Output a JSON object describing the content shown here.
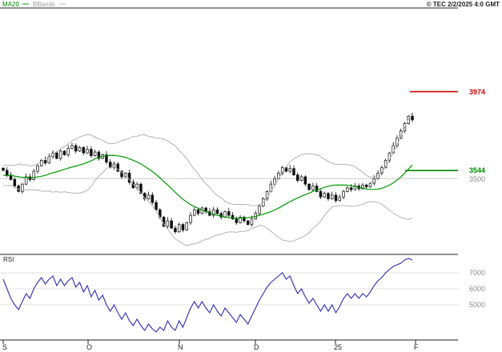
{
  "header": {
    "indicators": [
      {
        "label": "MA20",
        "color": "#008800"
      },
      {
        "label": "BBands",
        "color": "#b3b3b3"
      }
    ],
    "copyright": "© TEC 2/2/2025 4:0 GMT"
  },
  "price_panel": {
    "levels": [
      {
        "label": "3974",
        "value": 3974,
        "type": "resistance",
        "color": "#cc0000"
      },
      {
        "label": "3544",
        "value": 3544,
        "type": "support",
        "color": "#008800"
      }
    ],
    "axis_labels": [
      {
        "label": "3500",
        "value": 3500
      }
    ]
  },
  "rsi_panel": {
    "label": "RSI",
    "axis_labels": [
      {
        "label": "7000",
        "value": 70
      },
      {
        "label": "6000",
        "value": 60
      },
      {
        "label": "5000",
        "value": 50
      }
    ]
  },
  "x_axis": {
    "labels": [
      {
        "label": "S"
      },
      {
        "label": "O"
      },
      {
        "label": "N"
      },
      {
        "label": "D"
      },
      {
        "label": "25"
      },
      {
        "label": "F"
      }
    ]
  },
  "chart_data": {
    "type": "candlestick",
    "title": "",
    "panels": [
      "price",
      "rsi"
    ],
    "x_axis_labels": [
      "S",
      "O",
      "N",
      "D",
      "25",
      "F"
    ],
    "month_tick_x": [
      4,
      110,
      224,
      319,
      419,
      519
    ],
    "colors": {
      "candle": "#111111",
      "ma": "#009900",
      "bbands": "#b3b3b3",
      "rsi": "#2d2db4",
      "grid": "#cccccc",
      "rsi_grid": "#e2e2e2",
      "axis": "#222222"
    },
    "price": {
      "ylim": [
        3100,
        4430
      ],
      "gridline": 3500,
      "ma_period": 20,
      "bollinger_k": 2,
      "pre_closes": [
        3470,
        3520,
        3485,
        3540,
        3495,
        3550,
        3505,
        3555,
        3515,
        3480,
        3535,
        3495,
        3460,
        3515,
        3485,
        3525,
        3500,
        3535,
        3555,
        3550
      ],
      "closes": [
        3545,
        3520,
        3495,
        3460,
        3430,
        3470,
        3510,
        3495,
        3540,
        3570,
        3600,
        3585,
        3620,
        3640,
        3610,
        3650,
        3630,
        3665,
        3680,
        3650,
        3670,
        3640,
        3660,
        3625,
        3645,
        3610,
        3630,
        3590,
        3560,
        3580,
        3540,
        3510,
        3530,
        3480,
        3450,
        3470,
        3420,
        3390,
        3410,
        3370,
        3330,
        3290,
        3240,
        3270,
        3230,
        3210,
        3250,
        3220,
        3260,
        3300,
        3330,
        3310,
        3340,
        3320,
        3300,
        3330,
        3310,
        3290,
        3320,
        3300,
        3280,
        3260,
        3290,
        3270,
        3250,
        3280,
        3310,
        3350,
        3390,
        3430,
        3470,
        3500,
        3530,
        3560,
        3540,
        3555,
        3520,
        3490,
        3510,
        3470,
        3440,
        3460,
        3430,
        3400,
        3420,
        3390,
        3410,
        3380,
        3400,
        3430,
        3450,
        3440,
        3460,
        3445,
        3465,
        3455,
        3475,
        3500,
        3530,
        3560,
        3600,
        3640,
        3680,
        3720,
        3760,
        3800,
        3840,
        3820
      ]
    },
    "rsi": {
      "ylim": [
        28,
        81.5
      ],
      "gridlines": [
        70,
        60,
        50
      ],
      "values": [
        66,
        60,
        54,
        50,
        47,
        52,
        57,
        54,
        60,
        64,
        67,
        63,
        66,
        68,
        62,
        66,
        62,
        65,
        67,
        61,
        64,
        58,
        62,
        55,
        59,
        53,
        56,
        50,
        46,
        50,
        45,
        41,
        45,
        40,
        37,
        41,
        37,
        34,
        38,
        35,
        33,
        36,
        34,
        40,
        36,
        34,
        40,
        36,
        42,
        48,
        52,
        48,
        52,
        48,
        45,
        50,
        46,
        43,
        48,
        45,
        42,
        39,
        44,
        41,
        38,
        43,
        48,
        53,
        57,
        61,
        64,
        66,
        68,
        70,
        66,
        68,
        62,
        57,
        60,
        55,
        51,
        54,
        50,
        46,
        50,
        46,
        50,
        45,
        49,
        54,
        57,
        54,
        57,
        54,
        57,
        55,
        58,
        62,
        65,
        67,
        70,
        72,
        74,
        75,
        76,
        78,
        79,
        78
      ]
    }
  }
}
